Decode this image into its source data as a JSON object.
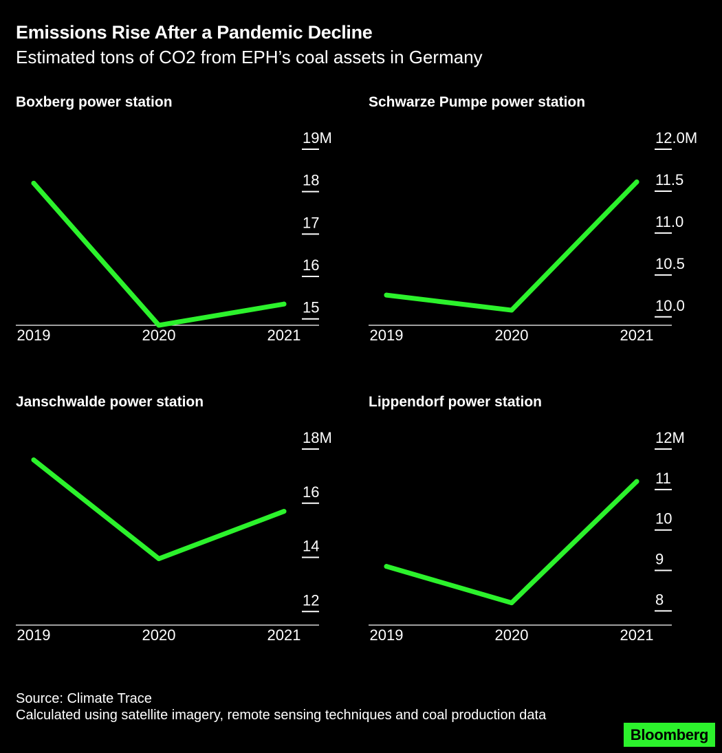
{
  "header": {
    "title": "Emissions Rise After a Pandemic Decline",
    "subtitle": "Estimated tons of CO2 from EPH’s coal assets in Germany"
  },
  "colors": {
    "background": "#000000",
    "line": "#2cf22c",
    "text": "#ffffff",
    "brand": "#2cf22c"
  },
  "chart_data": [
    {
      "type": "line",
      "title": "Boxberg power station",
      "categories": [
        "2019",
        "2020",
        "2021"
      ],
      "values": [
        18.2,
        14.85,
        15.35
      ],
      "ylim": [
        14.85,
        19
      ],
      "yticks": [
        15,
        16,
        17,
        18,
        19
      ],
      "ytick_labels": [
        "15",
        "16",
        "17",
        "18",
        "19M"
      ]
    },
    {
      "type": "line",
      "title": "Schwarze Pumpe power station",
      "categories": [
        "2019",
        "2020",
        "2021"
      ],
      "values": [
        10.26,
        10.08,
        11.61
      ],
      "ylim": [
        9.9,
        12.0
      ],
      "yticks": [
        10.0,
        10.5,
        11.0,
        11.5,
        12.0
      ],
      "ytick_labels": [
        "10.0",
        "10.5",
        "11.0",
        "11.5",
        "12.0M"
      ]
    },
    {
      "type": "line",
      "title": "Janschwalde power station",
      "categories": [
        "2019",
        "2020",
        "2021"
      ],
      "values": [
        17.6,
        13.95,
        15.7
      ],
      "ylim": [
        11.5,
        18
      ],
      "yticks": [
        12,
        14,
        16,
        18
      ],
      "ytick_labels": [
        "12",
        "14",
        "16",
        "18M"
      ]
    },
    {
      "type": "line",
      "title": "Lippendorf power station",
      "categories": [
        "2019",
        "2020",
        "2021"
      ],
      "values": [
        9.1,
        8.2,
        11.2
      ],
      "ylim": [
        7.65,
        12
      ],
      "yticks": [
        8,
        9,
        10,
        11,
        12
      ],
      "ytick_labels": [
        "8",
        "9",
        "10",
        "11",
        "12M"
      ]
    }
  ],
  "footer": {
    "source": "Source: Climate Trace",
    "note": "Calculated using satellite imagery, remote sensing techniques and coal production data"
  },
  "brand": {
    "label": "Bloomberg"
  }
}
